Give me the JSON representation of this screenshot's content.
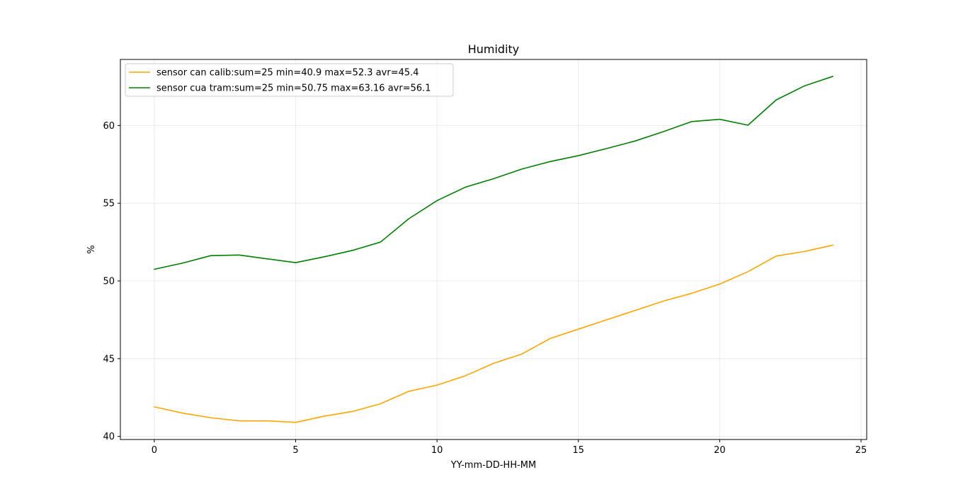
{
  "chart_data": {
    "type": "line",
    "title": "Humidity",
    "xlabel": "YY-mm-DD-HH-MM",
    "ylabel": "%",
    "xlim": [
      -1.2,
      25.2
    ],
    "ylim": [
      39.8,
      64.25
    ],
    "xticks": [
      0,
      5,
      10,
      15,
      20,
      25
    ],
    "yticks": [
      40,
      45,
      50,
      55,
      60
    ],
    "grid": true,
    "legend_position": "top-left",
    "x": [
      0,
      1,
      2,
      3,
      4,
      5,
      6,
      7,
      8,
      9,
      10,
      11,
      12,
      13,
      14,
      15,
      16,
      17,
      18,
      19,
      20,
      21,
      22,
      23,
      24
    ],
    "series": [
      {
        "name": "sensor can calib:sum=25 min=40.9 max=52.3 avr=45.4",
        "color": "#ffa500",
        "values": [
          41.9,
          41.5,
          41.2,
          41.0,
          41.0,
          40.9,
          41.3,
          41.6,
          42.1,
          42.9,
          43.3,
          43.9,
          44.7,
          45.3,
          46.3,
          46.9,
          47.5,
          48.1,
          48.7,
          49.2,
          49.8,
          50.6,
          51.6,
          51.9,
          52.3
        ]
      },
      {
        "name": "sensor cua tram:sum=25 min=50.75 max=63.16 avr=56.1",
        "color": "#008000",
        "values": [
          50.75,
          51.15,
          51.63,
          51.67,
          51.42,
          51.18,
          51.55,
          51.96,
          52.5,
          54.0,
          55.17,
          56.03,
          56.58,
          57.2,
          57.68,
          58.06,
          58.52,
          59.0,
          59.6,
          60.25,
          60.4,
          60.02,
          61.65,
          62.55,
          63.16
        ]
      }
    ]
  }
}
